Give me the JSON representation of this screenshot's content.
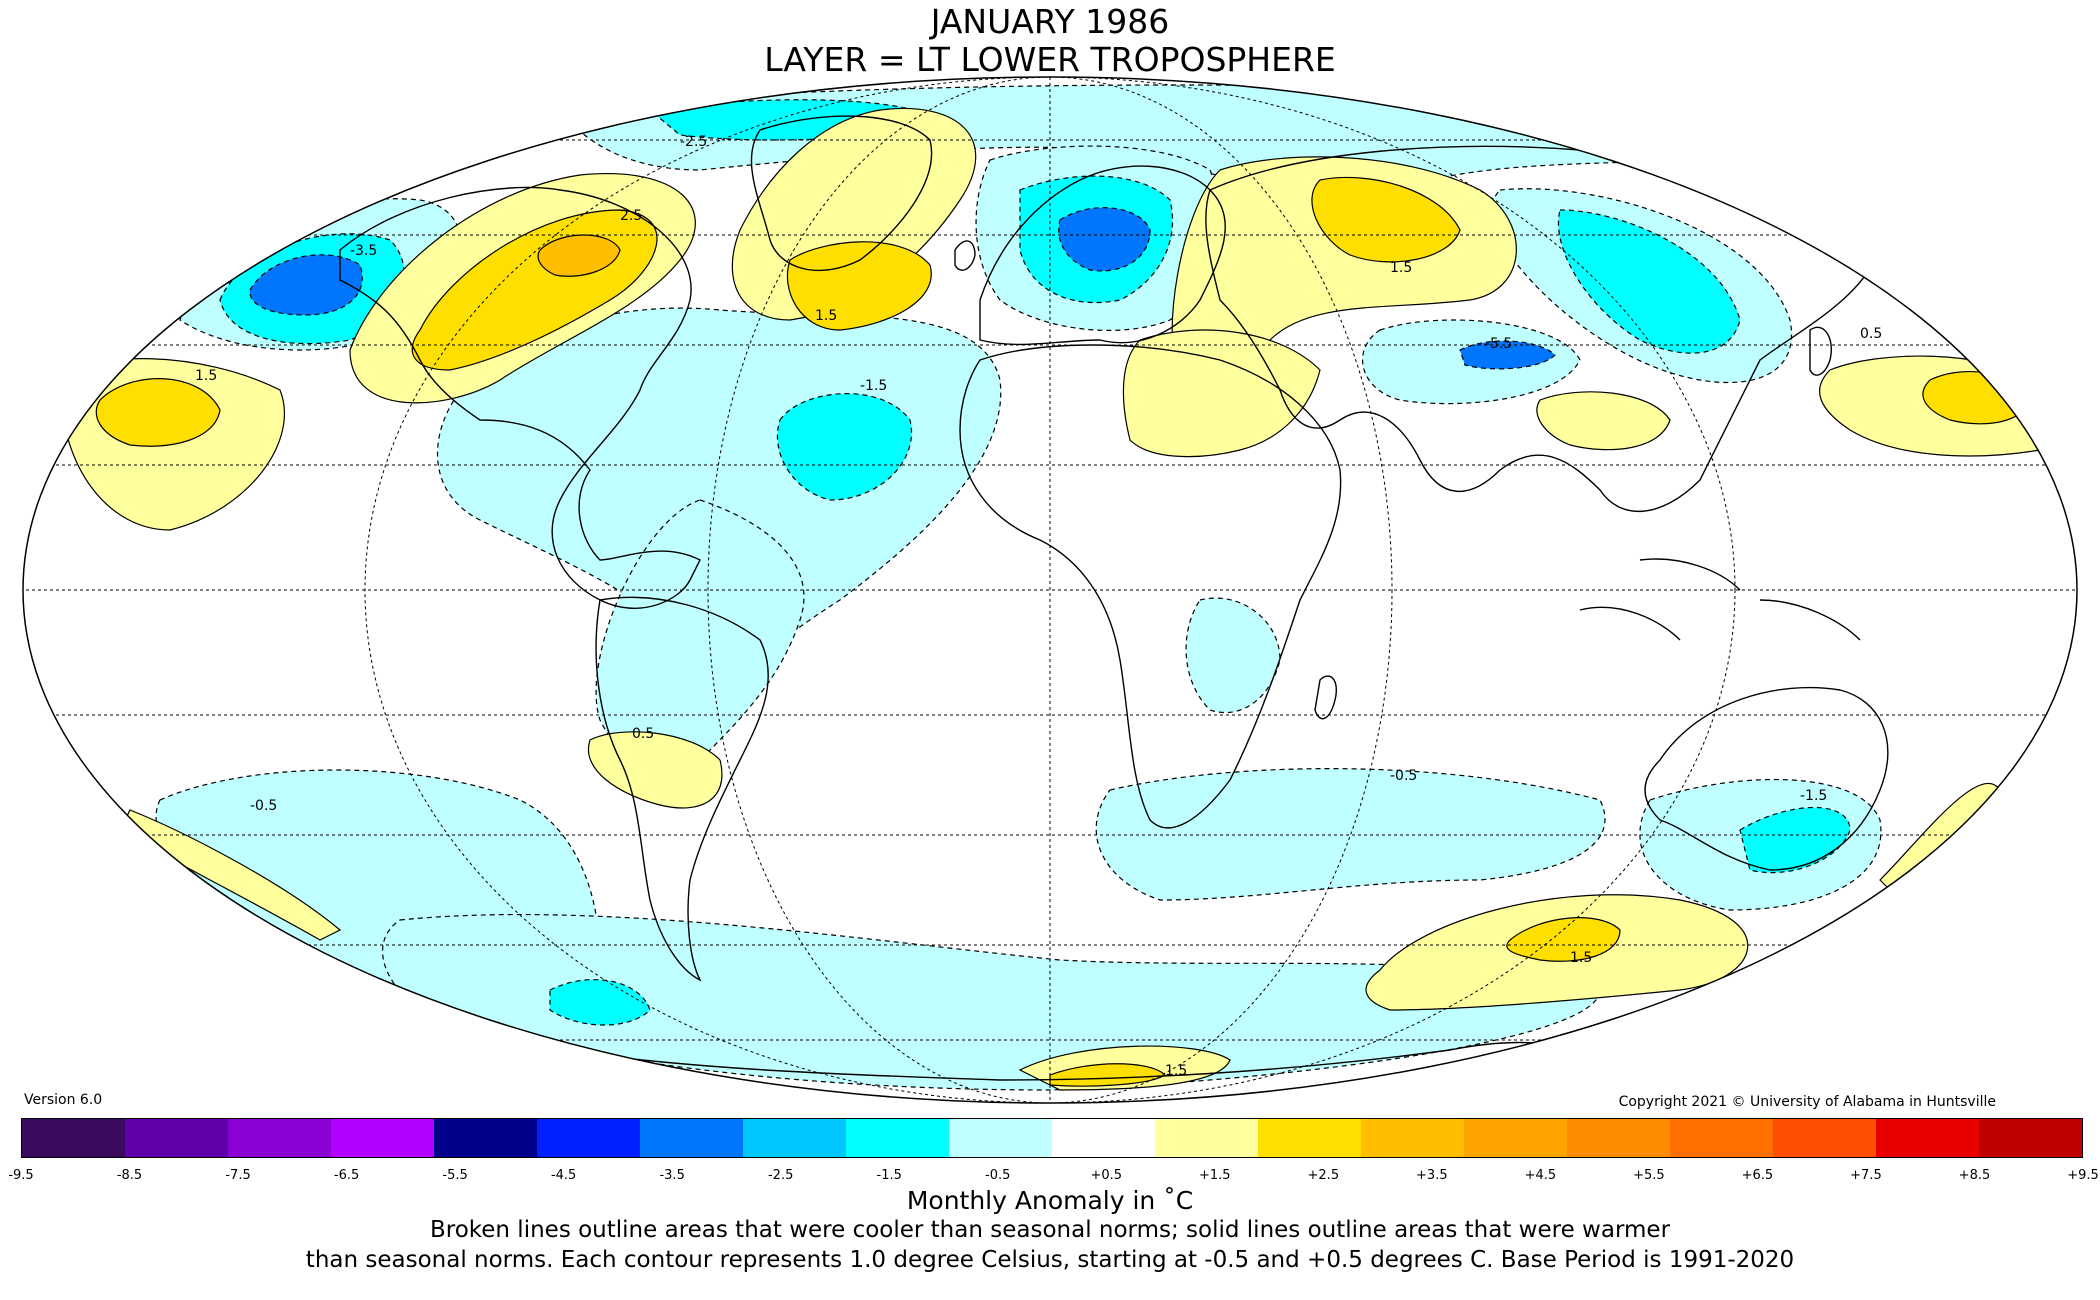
{
  "title_line1": "JANUARY 1986",
  "title_line2": "LAYER = LT LOWER TROPOSPHERE",
  "version": "Version 6.0",
  "copyright": "Copyright 2021 © University of Alabama in Huntsville",
  "colorbar": {
    "colors": [
      "#3a0b5c",
      "#5f00a8",
      "#8b00d2",
      "#b400ff",
      "#00008b",
      "#0020ff",
      "#0076ff",
      "#00c8ff",
      "#00ffff",
      "#bfffff",
      "#ffffff",
      "#ffff9e",
      "#ffdf00",
      "#ffbf00",
      "#ffa300",
      "#ff8c00",
      "#ff7000",
      "#ff4f00",
      "#e80000",
      "#bf0000"
    ],
    "ticks": [
      "-9.5",
      "-8.5",
      "-7.5",
      "-6.5",
      "-5.5",
      "-4.5",
      "-3.5",
      "-2.5",
      "-1.5",
      "-0.5",
      "+0.5",
      "+1.5",
      "+2.5",
      "+3.5",
      "+4.5",
      "+5.5",
      "+6.5",
      "+7.5",
      "+8.5",
      "+9.5"
    ]
  },
  "unit_label": "Monthly Anomaly in ˚C",
  "note_line1": "Broken lines outline areas that were cooler than seasonal norms; solid lines outline areas that were warmer",
  "note_line2": "than seasonal norms. Each contour represents 1.0 degree Celsius, starting at -0.5 and +0.5 degrees C. Base Period is 1991-2020",
  "contour_labels": {
    "alaska_cold": "-3.5",
    "canada_warm": "2.5",
    "pacific_warm": "1.5",
    "atlantic_cold": "-1.5",
    "greenland_warm": "1.5",
    "siberia_warm": "1.5",
    "caspian_cold": "-5.5",
    "south_pacific_cold": "-0.5",
    "south_atlantic_cold": "-0.5",
    "australia_cold": "-1.5",
    "southern_ocean_warm": "1.5",
    "argentina_warm": "0.5",
    "antarctic_warm": "1.5",
    "north_pacific_warm": "0.5",
    "greenland_cold": "-2.5"
  }
}
